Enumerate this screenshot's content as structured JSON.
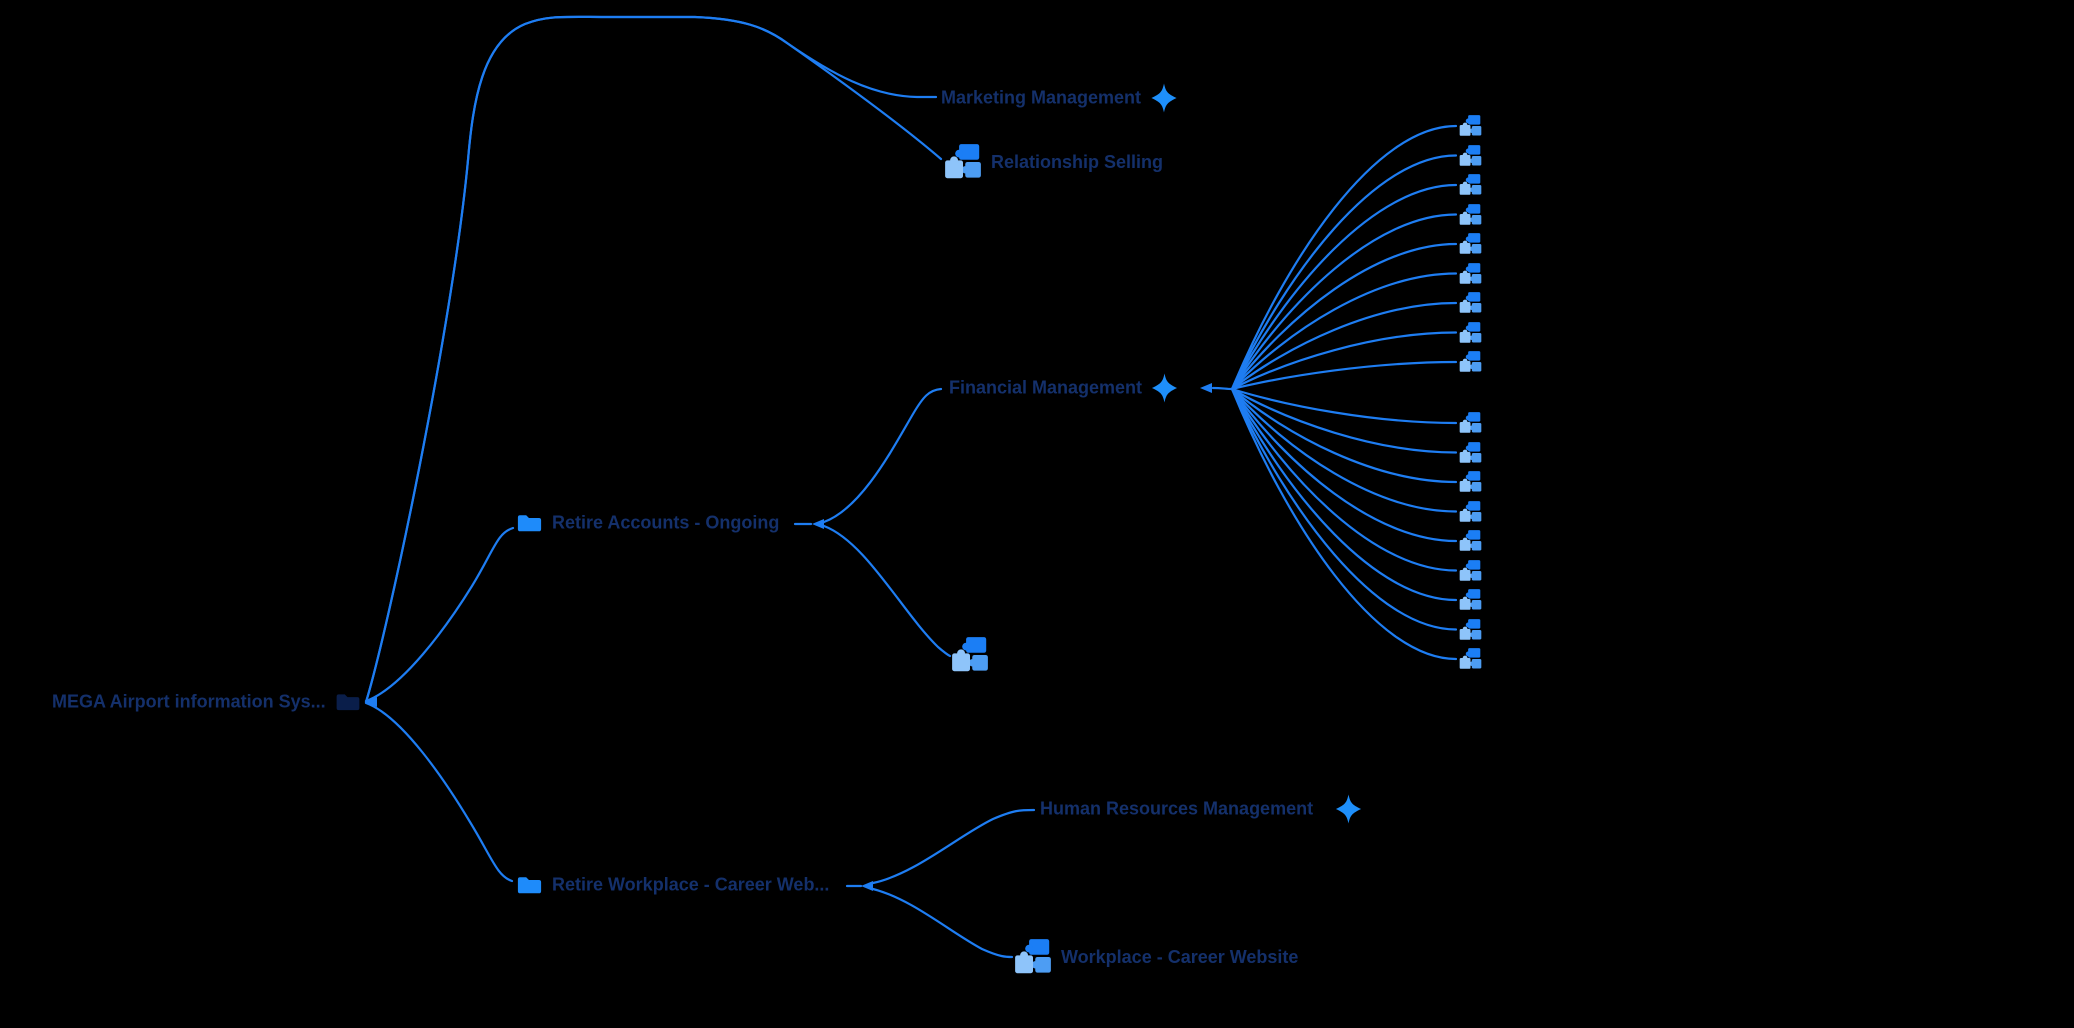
{
  "diagram": {
    "type": "impact-tree-map",
    "background": "#000000"
  },
  "colors": {
    "edge": "#1e7df2",
    "label": "#14306b",
    "folder_bright": "#1e8bfa",
    "folder_dark": "#0a1e4a",
    "sparkle": "#1e8ffa",
    "puzzle_dark": "#1b7ef5",
    "puzzle_medium": "#4d9df3",
    "puzzle_light": "#8ec4fa"
  },
  "nodes": {
    "root": {
      "label": "MEGA Airport information Sys...",
      "icon": "folder-dark-icon"
    },
    "marketing": {
      "label": "Marketing Management",
      "icon": "sparkle-icon"
    },
    "relationship_selling": {
      "label": "Relationship Selling",
      "icon": "puzzle-icon"
    },
    "retire_accounts": {
      "label": "Retire Accounts - Ongoing",
      "icon": "folder-icon"
    },
    "financial": {
      "label": "Financial Management",
      "icon": "sparkle-icon"
    },
    "unlabeled_process": {
      "label": "",
      "icon": "puzzle-icon"
    },
    "retire_workplace": {
      "label": "Retire Workplace - Career Web...",
      "icon": "folder-icon"
    },
    "hr": {
      "label": "Human Resources Management",
      "icon": "sparkle-icon"
    },
    "workplace": {
      "label": "Workplace - Career Website",
      "icon": "puzzle-icon"
    },
    "financial_children": {
      "count": 18,
      "icon": "puzzle-icon",
      "labels_visible": false
    }
  }
}
